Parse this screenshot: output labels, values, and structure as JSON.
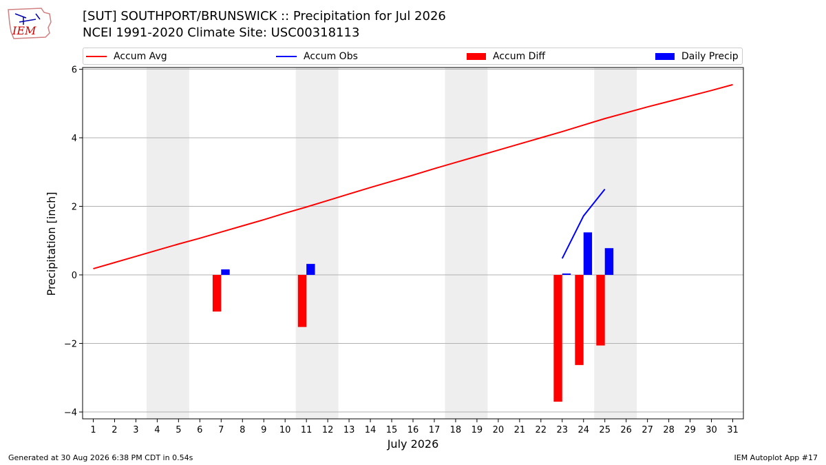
{
  "logo": {
    "text": "IEM"
  },
  "header": {
    "title": "[SUT] SOUTHPORT/BRUNSWICK :: Precipitation for Jul 2026",
    "subtitle": "NCEI 1991-2020 Climate Site: USC00318113"
  },
  "legend": [
    {
      "label": "Accum Avg",
      "kind": "line",
      "color": "#ff0000"
    },
    {
      "label": "Accum Obs",
      "kind": "line",
      "color": "#0000ff"
    },
    {
      "label": "Accum Diff",
      "kind": "box",
      "color": "#ff0000"
    },
    {
      "label": "Daily Precip",
      "kind": "box",
      "color": "#0000ff"
    }
  ],
  "chart_data": {
    "type": "bar",
    "xlabel": "July 2026",
    "ylabel": "Precipitation [inch]",
    "xlim": [
      0.5,
      31.5
    ],
    "ylim": [
      -4.2,
      6.05
    ],
    "yticks": [
      -4,
      -2,
      0,
      2,
      4,
      6
    ],
    "ytick_labels": [
      "−4",
      "−2",
      "0",
      "2",
      "4",
      "6"
    ],
    "categories": [
      "1",
      "2",
      "3",
      "4",
      "5",
      "6",
      "7",
      "8",
      "9",
      "10",
      "11",
      "12",
      "13",
      "14",
      "15",
      "16",
      "17",
      "18",
      "19",
      "20",
      "21",
      "22",
      "23",
      "24",
      "25",
      "26",
      "27",
      "28",
      "29",
      "30",
      "31"
    ],
    "weekend_bands": [
      [
        3.5,
        5.5
      ],
      [
        10.5,
        12.5
      ],
      [
        17.5,
        19.5
      ],
      [
        24.5,
        26.5
      ]
    ],
    "grid": "horizontal",
    "legend_position": "top",
    "series": [
      {
        "name": "Accum Avg",
        "type": "line",
        "color": "#ff0000",
        "x": [
          1,
          2,
          3,
          4,
          5,
          6,
          7,
          8,
          9,
          10,
          11,
          12,
          13,
          14,
          15,
          16,
          17,
          18,
          19,
          20,
          21,
          22,
          23,
          24,
          25,
          26,
          27,
          28,
          29,
          30,
          31
        ],
        "values": [
          0.18,
          0.36,
          0.54,
          0.72,
          0.9,
          1.07,
          1.25,
          1.43,
          1.61,
          1.8,
          1.98,
          2.17,
          2.36,
          2.55,
          2.73,
          2.91,
          3.1,
          3.28,
          3.46,
          3.64,
          3.82,
          4.0,
          4.18,
          4.37,
          4.56,
          4.73,
          4.9,
          5.06,
          5.22,
          5.38,
          5.55
        ]
      },
      {
        "name": "Accum Obs",
        "type": "line",
        "color": "#0000ff",
        "x": [
          23,
          24,
          25
        ],
        "values": [
          0.48,
          1.72,
          2.5
        ]
      },
      {
        "name": "Accum Diff",
        "type": "bar",
        "color": "#ff0000",
        "x": [
          7,
          11,
          23,
          24,
          25
        ],
        "values": [
          -1.07,
          -1.52,
          -3.7,
          -2.63,
          -2.06
        ]
      },
      {
        "name": "Daily Precip",
        "type": "bar",
        "color": "#0000ff",
        "x": [
          7,
          11,
          23,
          24,
          25
        ],
        "values": [
          0.16,
          0.32,
          0.04,
          1.24,
          0.78
        ]
      }
    ]
  },
  "footer": {
    "generated": "Generated at 30 Aug 2026 6:38 PM CDT in 0.54s",
    "app": "IEM Autoplot App #17"
  }
}
